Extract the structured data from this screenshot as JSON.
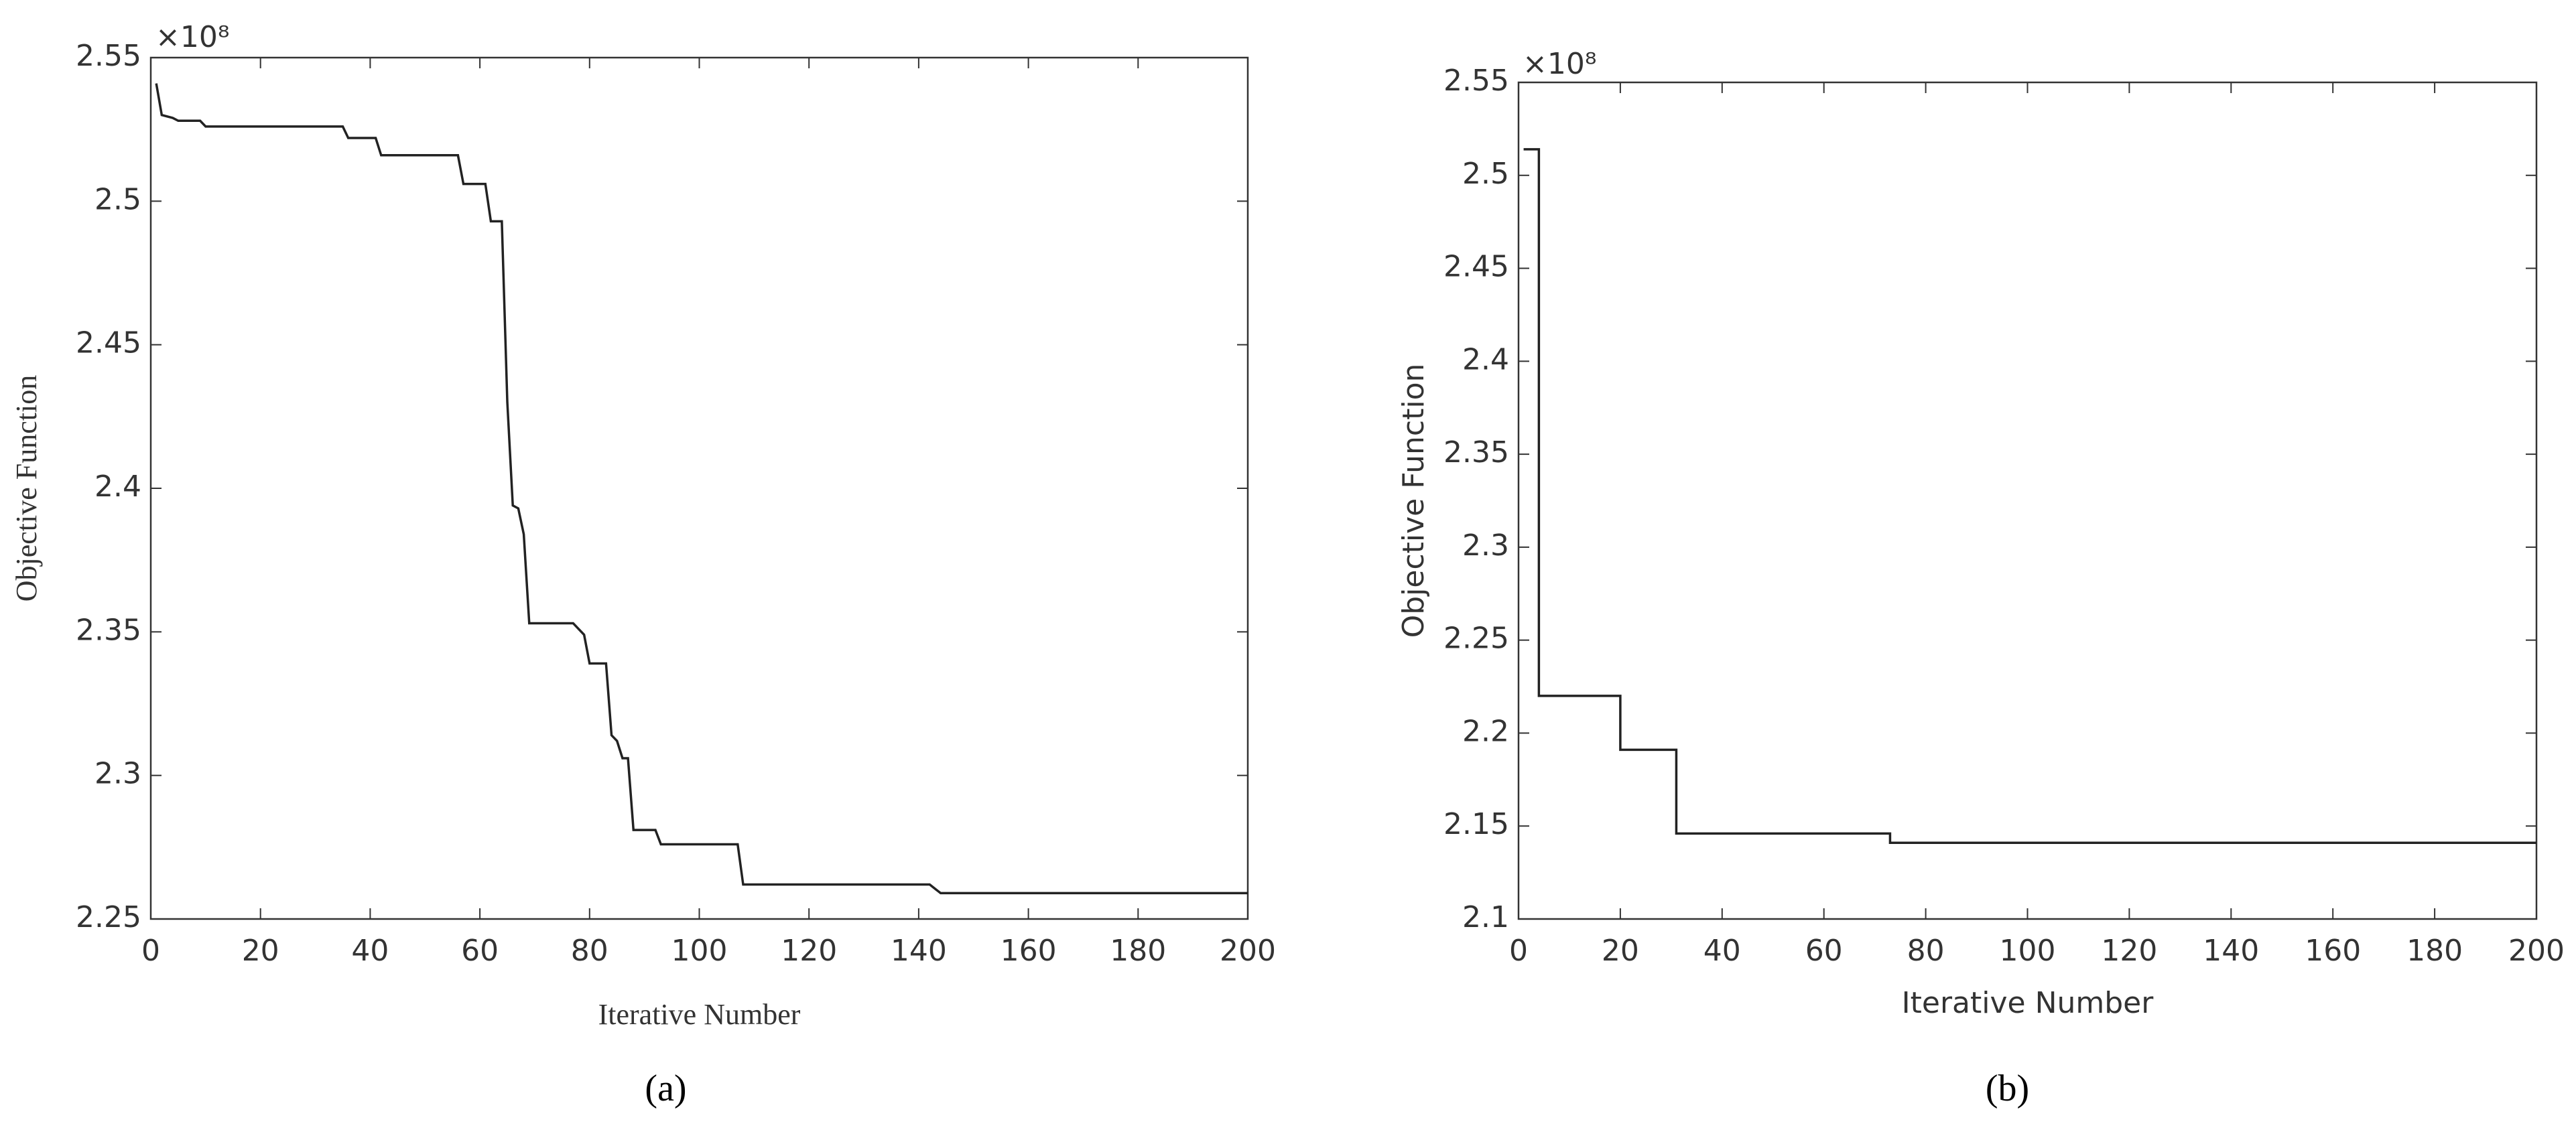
{
  "chart_data": [
    {
      "type": "line",
      "panel_label": "(a)",
      "xlabel": "Iterative Number",
      "ylabel": "Objective Function",
      "multiplier": "×10⁸",
      "x": [
        1,
        2,
        4,
        5,
        9,
        10,
        35,
        36,
        41,
        42,
        56,
        57,
        61,
        62,
        64,
        65,
        66,
        67,
        68,
        69,
        77,
        79,
        80,
        83,
        84,
        85,
        86,
        87,
        88,
        92,
        93,
        107,
        108,
        142,
        144,
        200
      ],
      "values": [
        2.541,
        2.53,
        2.529,
        2.528,
        2.528,
        2.526,
        2.526,
        2.522,
        2.522,
        2.516,
        2.516,
        2.506,
        2.506,
        2.493,
        2.493,
        2.43,
        2.394,
        2.393,
        2.384,
        2.353,
        2.353,
        2.349,
        2.339,
        2.339,
        2.314,
        2.312,
        2.306,
        2.306,
        2.281,
        2.281,
        2.276,
        2.276,
        2.262,
        2.262,
        2.259,
        2.259
      ],
      "color": "#222222",
      "grid": false,
      "xlim": [
        0,
        200
      ],
      "xticks": [
        0,
        20,
        40,
        60,
        80,
        100,
        120,
        140,
        160,
        180,
        200
      ],
      "ylim": [
        2.25,
        2.55
      ],
      "yticks": [
        2.25,
        2.3,
        2.35,
        2.4,
        2.45,
        2.5,
        2.55
      ]
    },
    {
      "type": "line",
      "panel_label": "(b)",
      "xlabel": "Iterative Number",
      "ylabel": "Objective Function",
      "multiplier": "×10⁸",
      "x": [
        1,
        4,
        4,
        20,
        20,
        31,
        31,
        73,
        73,
        200
      ],
      "values": [
        2.514,
        2.514,
        2.22,
        2.22,
        2.191,
        2.191,
        2.146,
        2.146,
        2.141,
        2.141
      ],
      "color": "#222222",
      "grid": false,
      "xlim": [
        0,
        200
      ],
      "xticks": [
        0,
        20,
        40,
        60,
        80,
        100,
        120,
        140,
        160,
        180,
        200
      ],
      "ylim": [
        2.1,
        2.55
      ],
      "yticks": [
        2.1,
        2.15,
        2.2,
        2.25,
        2.3,
        2.35,
        2.4,
        2.45,
        2.5,
        2.55
      ]
    }
  ]
}
